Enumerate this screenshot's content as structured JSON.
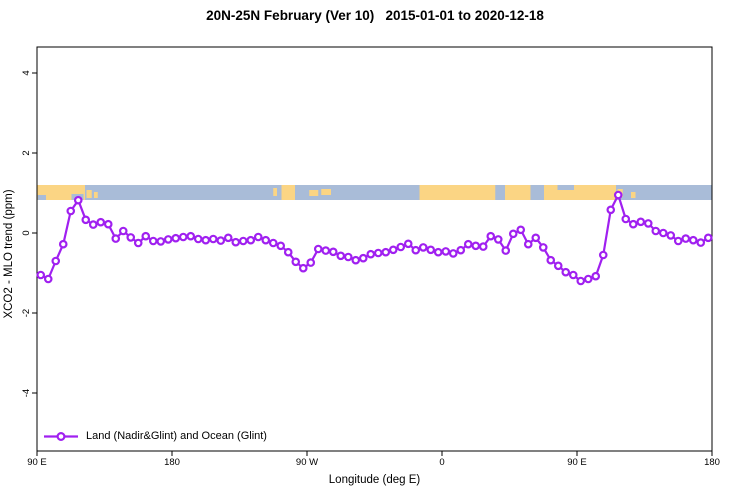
{
  "title": "20N-25N February (Ver 10)   2015-01-01 to 2020-12-18",
  "chart_data": {
    "type": "line",
    "title": "20N-25N February (Ver 10)   2015-01-01 to 2020-12-18",
    "xlabel": "Longitude (deg E)",
    "ylabel": "XCO2 - MLO trend (ppm)",
    "xlim": [
      90,
      540
    ],
    "ylim": [
      -5.45,
      4.65
    ],
    "grid": false,
    "x_ticks": [
      {
        "value": 90,
        "label": "90 E"
      },
      {
        "value": 180,
        "label": "180"
      },
      {
        "value": 270,
        "label": "90 W"
      },
      {
        "value": 360,
        "label": "0"
      },
      {
        "value": 450,
        "label": "90 E"
      },
      {
        "value": 540,
        "label": "180"
      }
    ],
    "y_ticks": [
      {
        "value": -4,
        "label": "-4"
      },
      {
        "value": -2,
        "label": "-2"
      },
      {
        "value": 0,
        "label": "0"
      },
      {
        "value": 2,
        "label": "2"
      },
      {
        "value": 4,
        "label": "4"
      }
    ],
    "legend": {
      "label": "Land (Nadir&Glint) and Ocean (Glint)",
      "position": "bottom-left"
    },
    "series": [
      {
        "name": "Land (Nadir&Glint) and Ocean (Glint)",
        "color": "#A020F0",
        "marker": "open-circle",
        "x": [
          92.5,
          97.5,
          102.5,
          107.5,
          112.5,
          117.5,
          122.5,
          127.5,
          132.5,
          137.5,
          142.5,
          147.5,
          152.5,
          157.5,
          162.5,
          167.5,
          172.5,
          177.5,
          182.5,
          187.5,
          192.5,
          197.5,
          202.5,
          207.5,
          212.5,
          217.5,
          222.5,
          227.5,
          232.5,
          237.5,
          242.5,
          247.5,
          252.5,
          257.5,
          262.5,
          267.5,
          272.5,
          277.5,
          282.5,
          287.5,
          292.5,
          297.5,
          302.5,
          307.5,
          312.5,
          317.5,
          322.5,
          327.5,
          332.5,
          337.5,
          342.5,
          347.5,
          352.5,
          357.5,
          362.5,
          367.5,
          372.5,
          377.5,
          382.5,
          387.5,
          392.5,
          397.5,
          402.5,
          407.5,
          412.5,
          417.5,
          422.5,
          427.5,
          432.5,
          437.5,
          442.5,
          447.5,
          452.5,
          457.5,
          462.5,
          467.5,
          472.5,
          477.5,
          482.5,
          487.5,
          492.5,
          497.5,
          502.5,
          507.5,
          512.5,
          517.5,
          522.5,
          527.5,
          532.5,
          537.5
        ],
        "y": [
          -1.05,
          -1.15,
          -0.7,
          -0.28,
          0.55,
          0.82,
          0.33,
          0.21,
          0.27,
          0.22,
          -0.14,
          0.05,
          -0.11,
          -0.25,
          -0.08,
          -0.2,
          -0.21,
          -0.16,
          -0.13,
          -0.1,
          -0.08,
          -0.15,
          -0.18,
          -0.15,
          -0.19,
          -0.12,
          -0.23,
          -0.2,
          -0.18,
          -0.1,
          -0.18,
          -0.25,
          -0.32,
          -0.48,
          -0.72,
          -0.88,
          -0.74,
          -0.4,
          -0.44,
          -0.47,
          -0.57,
          -0.6,
          -0.68,
          -0.63,
          -0.53,
          -0.5,
          -0.48,
          -0.42,
          -0.35,
          -0.27,
          -0.43,
          -0.36,
          -0.42,
          -0.48,
          -0.46,
          -0.51,
          -0.43,
          -0.28,
          -0.32,
          -0.34,
          -0.08,
          -0.16,
          -0.44,
          -0.02,
          0.08,
          -0.28,
          -0.12,
          -0.36,
          -0.68,
          -0.82,
          -0.98,
          -1.05,
          -1.2,
          -1.15,
          -1.08,
          -0.55,
          0.58,
          0.95,
          0.35,
          0.22,
          0.28,
          0.24,
          0.05,
          0.0,
          -0.06,
          -0.2,
          -0.14,
          -0.18,
          -0.24,
          -0.12
        ]
      }
    ],
    "map_band": {
      "description": "world coastline strip for 20N-25N drawn across the plot",
      "y_range_ppm": [
        0.825,
        1.2
      ],
      "ocean_color": "#A9BCD8",
      "land_color": "#FBD584",
      "land_segments": [
        {
          "from": 90,
          "to": 122
        },
        {
          "from": 123,
          "to": 126.5,
          "it": 5,
          "ib": 2
        },
        {
          "from": 128,
          "to": 130.5,
          "it": 7,
          "ib": 2
        },
        {
          "from": 247.5,
          "to": 250,
          "it": 3,
          "ib": 4
        },
        {
          "from": 253,
          "to": 262
        },
        {
          "from": 271.5,
          "to": 277.5,
          "it": 5,
          "ib": 4
        },
        {
          "from": 279.5,
          "to": 286,
          "it": 4,
          "ib": 5
        },
        {
          "from": 345,
          "to": 395.5
        },
        {
          "from": 402,
          "to": 419
        },
        {
          "from": 428,
          "to": 476
        },
        {
          "from": 477,
          "to": 480.5,
          "it": 4,
          "ib": 3
        },
        {
          "from": 486,
          "to": 489,
          "it": 7,
          "ib": 2
        }
      ],
      "water_notches": [
        {
          "from": 90.5,
          "to": 96,
          "it": 10
        },
        {
          "from": 113,
          "to": 121,
          "it": 9
        },
        {
          "from": 437,
          "to": 448,
          "ib": 10
        }
      ]
    }
  }
}
